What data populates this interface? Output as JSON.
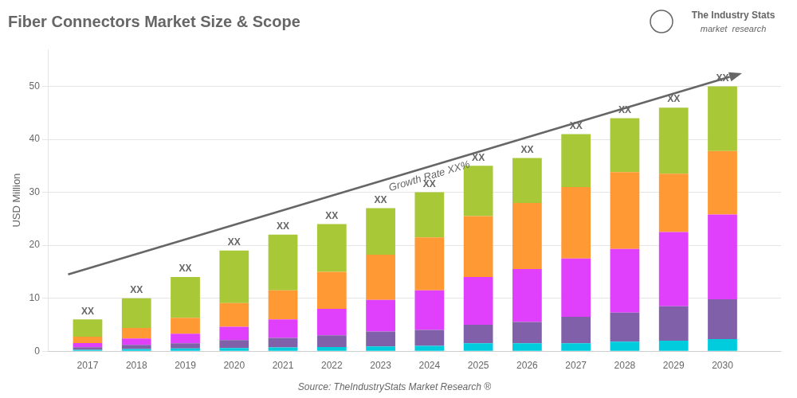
{
  "chart_data": {
    "type": "bar",
    "title": "Fiber Connectors Market Size & Scope",
    "ylabel": "USD Million",
    "source": "Source: TheIndustryStats Market Research ®",
    "logo": [
      "The Industry Stats",
      "market  research"
    ],
    "stacked": true,
    "x": [
      2017,
      2018,
      2019,
      2020,
      2021,
      2022,
      2023,
      2024,
      2025,
      2026,
      2027,
      2028,
      2029,
      2030
    ],
    "series": [
      {
        "color": "#00ccdd",
        "values": [
          0.25,
          0.4,
          0.5,
          0.6,
          0.7,
          0.8,
          0.9,
          1.0,
          1.5,
          1.5,
          1.5,
          1.8,
          2.0,
          2.3
        ]
      },
      {
        "color": "#8060a8",
        "values": [
          0.5,
          0.8,
          1.0,
          1.5,
          1.8,
          2.2,
          2.8,
          3.0,
          3.5,
          4.0,
          5.0,
          5.5,
          6.5,
          7.5
        ]
      },
      {
        "color": "#e040fb",
        "values": [
          0.8,
          1.2,
          1.8,
          2.5,
          3.5,
          5.0,
          6.0,
          7.5,
          9.0,
          10.0,
          11.0,
          12.0,
          14.0,
          16.0
        ]
      },
      {
        "color": "#ff9933",
        "values": [
          1.2,
          2.0,
          3.0,
          4.5,
          5.5,
          7.0,
          8.5,
          10.0,
          11.5,
          12.5,
          13.5,
          14.5,
          11.0,
          12.0
        ]
      },
      {
        "color": "#a8c837",
        "values": [
          3.25,
          5.6,
          7.7,
          9.9,
          10.5,
          9.0,
          8.8,
          8.5,
          9.5,
          8.5,
          10.0,
          10.2,
          12.5,
          12.2
        ]
      }
    ],
    "bar_label": "XX",
    "arrow": {
      "x": [
        2016.6,
        2030.4
      ],
      "y": [
        14.5,
        52.5
      ]
    },
    "annotations": [
      {
        "text": "Growth Rate XX%",
        "x": 2024.0,
        "y": 33.0
      }
    ],
    "xlim": [
      2016.2,
      2031.2
    ],
    "xticks": [
      2017,
      2018,
      2019,
      2020,
      2021,
      2022,
      2023,
      2024,
      2025,
      2026,
      2027,
      2028,
      2029,
      2030
    ],
    "ylim": [
      0,
      57
    ],
    "yticks": [
      0,
      10,
      20,
      30,
      40,
      50
    ],
    "grid": "y"
  }
}
